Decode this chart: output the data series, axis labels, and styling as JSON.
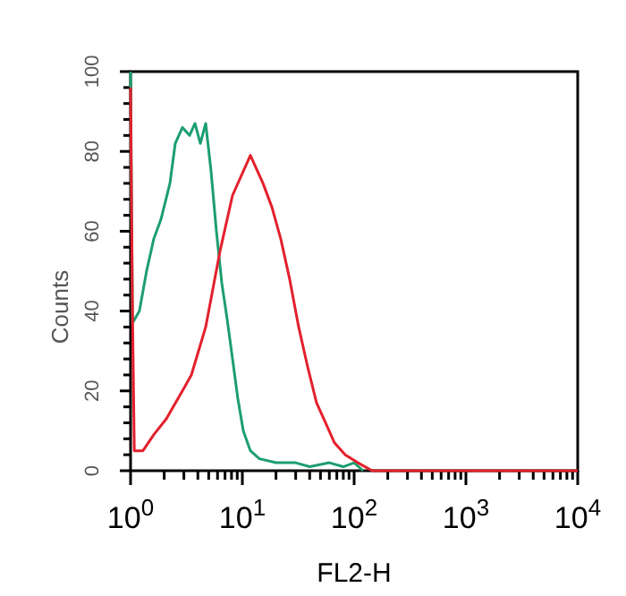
{
  "chart_data": {
    "type": "line",
    "xlabel": "FL2-H",
    "ylabel": "Counts",
    "log": "x",
    "xlim": [
      1,
      10000
    ],
    "ylim": [
      0,
      100
    ],
    "xticks": [
      {
        "value": 1,
        "label": "10$^{0}$"
      },
      {
        "value": 2,
        "label": null
      },
      {
        "value": 3,
        "label": null
      },
      {
        "value": 4,
        "label": null
      },
      {
        "value": 5,
        "label": null
      },
      {
        "value": 6,
        "label": null
      },
      {
        "value": 7,
        "label": null
      },
      {
        "value": 8,
        "label": null
      },
      {
        "value": 9,
        "label": null
      },
      {
        "value": 10,
        "label": "10$^{1}$"
      },
      {
        "value": 20,
        "label": null
      },
      {
        "value": 30,
        "label": null
      },
      {
        "value": 40,
        "label": null
      },
      {
        "value": 50,
        "label": null
      },
      {
        "value": 60,
        "label": null
      },
      {
        "value": 70,
        "label": null
      },
      {
        "value": 80,
        "label": null
      },
      {
        "value": 90,
        "label": null
      },
      {
        "value": 100,
        "label": "10$^{2}$"
      },
      {
        "value": 200,
        "label": null
      },
      {
        "value": 300,
        "label": null
      },
      {
        "value": 400,
        "label": null
      },
      {
        "value": 500,
        "label": null
      },
      {
        "value": 600,
        "label": null
      },
      {
        "value": 700,
        "label": null
      },
      {
        "value": 800,
        "label": null
      },
      {
        "value": 900,
        "label": null
      },
      {
        "value": 1000,
        "label": "10$^{3}$"
      },
      {
        "value": 2000,
        "label": null
      },
      {
        "value": 3000,
        "label": null
      },
      {
        "value": 4000,
        "label": null
      },
      {
        "value": 5000,
        "label": null
      },
      {
        "value": 6000,
        "label": null
      },
      {
        "value": 7000,
        "label": null
      },
      {
        "value": 8000,
        "label": null
      },
      {
        "value": 9000,
        "label": null
      },
      {
        "value": 10000,
        "label": "10$^{4}$"
      }
    ],
    "yticks": [
      0,
      {
        "value": 4,
        "label": null
      },
      {
        "value": 8,
        "label": null
      },
      {
        "value": 12,
        "label": null
      },
      {
        "value": 16,
        "label": null
      },
      20,
      {
        "value": 24,
        "label": null
      },
      {
        "value": 28,
        "label": null
      },
      {
        "value": 32,
        "label": null
      },
      {
        "value": 36,
        "label": null
      },
      40,
      {
        "value": 44,
        "label": null
      },
      {
        "value": 48,
        "label": null
      },
      {
        "value": 52,
        "label": null
      },
      {
        "value": 56,
        "label": null
      },
      60,
      {
        "value": 64,
        "label": null
      },
      {
        "value": 68,
        "label": null
      },
      {
        "value": 72,
        "label": null
      },
      {
        "value": 76,
        "label": null
      },
      80,
      {
        "value": 84,
        "label": null
      },
      {
        "value": 88,
        "label": null
      },
      {
        "value": 92,
        "label": null
      },
      {
        "value": 96,
        "label": null
      },
      100
    ],
    "marker": "none",
    "line_style": "solid",
    "series": [
      {
        "color": "#1c9e70",
        "x": [
          1,
          1.04,
          1.2,
          1.39,
          1.61,
          1.87,
          2.25,
          2.51,
          2.91,
          3.37,
          3.77,
          4.21,
          4.7,
          5.25,
          5.86,
          6.55,
          7.31,
          8.17,
          9.12,
          10.2,
          11.8,
          14.2,
          20,
          30,
          40,
          60,
          80,
          100,
          120
        ],
        "values": [
          100,
          37,
          40,
          50,
          58,
          63,
          72,
          82,
          86,
          84,
          87,
          82,
          87,
          75,
          60,
          47,
          38,
          28,
          18,
          10,
          5,
          3,
          2,
          2,
          1,
          2,
          1,
          2,
          0
        ]
      },
      {
        "color": "#e3202c",
        "x": [
          1,
          1.04,
          1.08,
          1.29,
          1.61,
          2.09,
          2.91,
          3.5,
          4.7,
          6.31,
          8.17,
          11.8,
          15.3,
          18.4,
          22.1,
          26.5,
          31.9,
          38.4,
          46.1,
          55.5,
          66.7,
          83.2,
          108,
          145,
          10000
        ],
        "values": [
          96,
          40,
          5,
          5,
          9,
          13,
          20,
          24,
          36,
          55,
          69,
          79,
          72,
          66,
          58,
          48,
          36,
          26,
          17,
          12,
          7,
          4,
          2,
          0,
          0
        ]
      }
    ]
  }
}
